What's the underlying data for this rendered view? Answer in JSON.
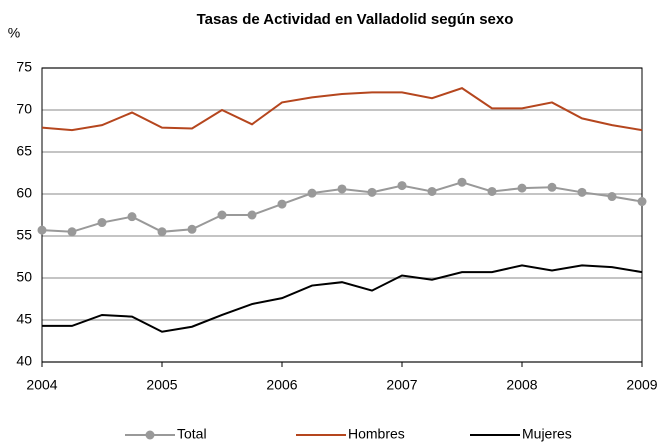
{
  "chart_data": {
    "type": "line",
    "title": "Tasas de Actividad en Valladolid según sexo",
    "y_label": "%",
    "x": [
      2004,
      2004.25,
      2004.5,
      2004.75,
      2005,
      2005.25,
      2005.5,
      2005.75,
      2006,
      2006.25,
      2006.5,
      2006.75,
      2007,
      2007.25,
      2007.5,
      2007.75,
      2008,
      2008.25,
      2008.5,
      2008.75,
      2009
    ],
    "series": [
      {
        "name": "Total",
        "color": "#999999",
        "marker": true,
        "values": [
          55.7,
          55.5,
          56.6,
          57.3,
          55.5,
          55.8,
          57.5,
          57.5,
          58.8,
          60.1,
          60.6,
          60.2,
          61.0,
          60.3,
          61.4,
          60.3,
          60.7,
          60.8,
          60.2,
          59.7,
          59.1
        ]
      },
      {
        "name": "Hombres",
        "color": "#b5461e",
        "marker": false,
        "values": [
          67.9,
          67.6,
          68.2,
          69.7,
          67.9,
          67.8,
          70.0,
          68.3,
          70.9,
          71.5,
          71.9,
          72.1,
          72.1,
          71.4,
          72.6,
          70.2,
          70.2,
          70.9,
          69.0,
          68.2,
          67.6
        ]
      },
      {
        "name": "Mujeres",
        "color": "#000000",
        "marker": false,
        "values": [
          44.3,
          44.3,
          45.6,
          45.4,
          43.6,
          44.2,
          45.6,
          46.9,
          47.6,
          49.1,
          49.5,
          48.5,
          50.3,
          49.8,
          50.7,
          50.7,
          51.5,
          50.9,
          51.5,
          51.3,
          50.7
        ]
      }
    ],
    "xlim": [
      2004,
      2009
    ],
    "xticks": [
      2004,
      2005,
      2006,
      2007,
      2008,
      2009
    ],
    "ylim": [
      40,
      75
    ],
    "yticks": [
      40,
      45,
      50,
      55,
      60,
      65,
      70,
      75
    ],
    "grid": true,
    "legend": "bottom"
  }
}
